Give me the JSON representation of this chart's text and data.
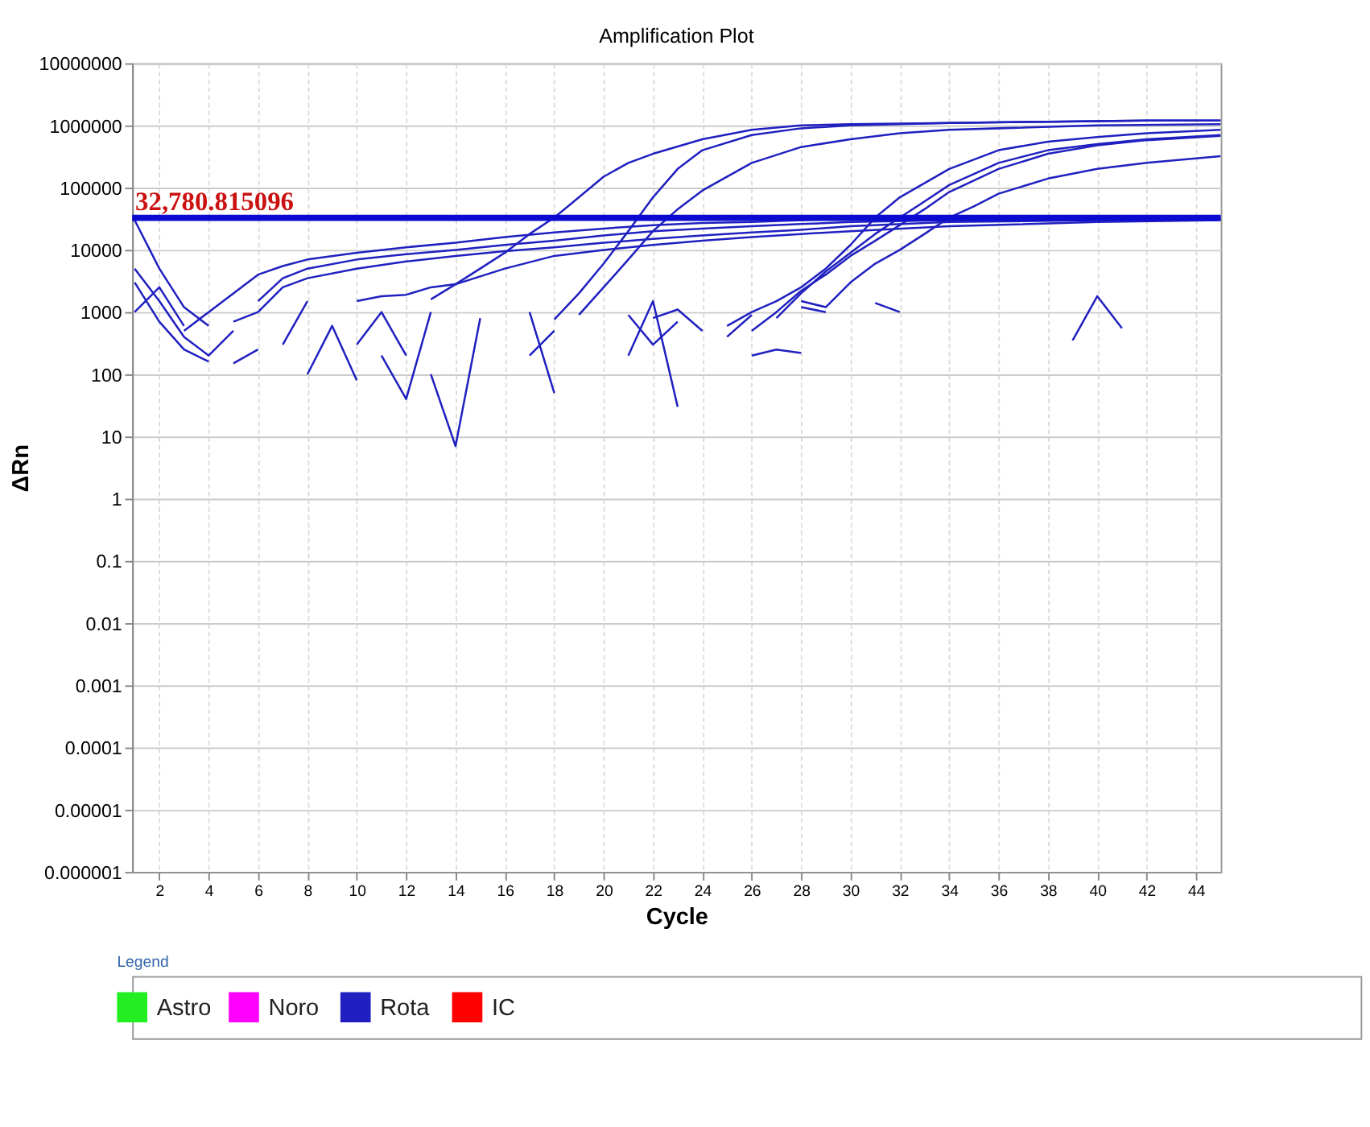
{
  "chart_data": {
    "type": "line",
    "title": "Amplification Plot",
    "xlabel": "Cycle",
    "ylabel": "ΔRn",
    "legend_title": "Legend",
    "legend": "bottom",
    "log": "y",
    "grid": true,
    "line_style": "solid",
    "xlim": [
      0.9,
      45
    ],
    "xticks": [
      2,
      4,
      6,
      8,
      10,
      12,
      14,
      16,
      18,
      20,
      22,
      24,
      26,
      28,
      30,
      32,
      34,
      36,
      38,
      40,
      42,
      44
    ],
    "ylim": [
      1e-06,
      10000000
    ],
    "yticks": [
      {
        "value": 1e-06,
        "label": "0.000001"
      },
      {
        "value": 1e-05,
        "label": "0.00001"
      },
      0.0001,
      0.001,
      0.01,
      0.1,
      1,
      10,
      100,
      1000,
      10000,
      100000,
      1000000,
      10000000
    ],
    "ref_lines": [
      {
        "axis": "y",
        "value": 32780.815096,
        "label": "32,780.815096",
        "color": "#0a0ad0"
      }
    ],
    "series": [
      {
        "name": "Astro",
        "color": "#22ee22"
      },
      {
        "name": "Noro",
        "color": "#ff00ff"
      },
      {
        "name": "Rota",
        "color": "#2020c0",
        "x": [
          13,
          14,
          15,
          16,
          17,
          18,
          19,
          20,
          21,
          22,
          24,
          26,
          28,
          30,
          34,
          38,
          42,
          45
        ],
        "values": [
          1600,
          2800,
          5000,
          9000,
          18000,
          33000,
          70000,
          150000,
          250000,
          350000,
          600000,
          850000,
          1000000,
          1050000,
          1100000,
          1150000,
          1200000,
          1200000
        ]
      },
      {
        "name": "IC",
        "color": "#ff0000"
      },
      {
        "color": "#2020c0",
        "x": [
          18,
          19,
          20,
          21,
          22,
          23,
          24,
          26,
          28,
          30,
          34,
          38,
          42,
          45
        ],
        "values": [
          760,
          2000,
          6000,
          20000,
          70000,
          200000,
          400000,
          700000,
          900000,
          1000000,
          1100000,
          1150000,
          1200000,
          1200000
        ]
      },
      {
        "color": "#2020c0",
        "x": [
          19,
          20,
          21,
          22,
          23,
          24,
          26,
          28,
          30,
          32,
          34,
          36,
          40,
          45
        ],
        "values": [
          900,
          2500,
          7000,
          20000,
          45000,
          90000,
          250000,
          450000,
          600000,
          750000,
          850000,
          900000,
          1000000,
          1050000
        ]
      },
      {
        "color": "#2020c0",
        "x": [
          3,
          4,
          5,
          6,
          7,
          8,
          10,
          12,
          14,
          16,
          18,
          20,
          22,
          24,
          26,
          28,
          30,
          34,
          40,
          45
        ],
        "values": [
          500,
          1000,
          2000,
          4000,
          5500,
          7000,
          9000,
          11000,
          13000,
          16000,
          19000,
          22000,
          25000,
          27000,
          28000,
          30000,
          32000,
          33000,
          33000,
          34000
        ]
      },
      {
        "color": "#2020c0",
        "x": [
          6,
          7,
          8,
          10,
          12,
          14,
          16,
          18,
          20,
          22,
          24,
          26,
          28,
          30,
          34,
          40,
          45
        ],
        "values": [
          1500,
          3500,
          5000,
          7000,
          8500,
          10000,
          12000,
          14000,
          17000,
          20000,
          22000,
          24000,
          26000,
          28000,
          30000,
          31000,
          32000
        ]
      },
      {
        "color": "#2020c0",
        "x": [
          5,
          6,
          7,
          8,
          10,
          12,
          14,
          16,
          18,
          20,
          22,
          24,
          26,
          28,
          30,
          34,
          40,
          45
        ],
        "values": [
          700,
          1000,
          2500,
          3500,
          5000,
          6500,
          8000,
          9500,
          11000,
          13000,
          15000,
          17000,
          19000,
          21000,
          24000,
          28000,
          30000,
          31000
        ]
      },
      {
        "color": "#2020c0",
        "x": [
          10,
          11,
          12,
          13,
          14,
          16,
          18,
          20,
          22,
          24,
          26,
          28,
          30,
          34,
          40,
          45
        ],
        "values": [
          1500,
          1800,
          1900,
          2500,
          2800,
          5000,
          8000,
          10000,
          12000,
          14000,
          16000,
          18000,
          20000,
          24000,
          28000,
          30000
        ]
      },
      {
        "color": "#2020c0",
        "x": [
          25,
          26,
          27,
          28,
          29,
          30,
          31,
          32,
          34,
          36,
          38,
          40,
          42,
          45
        ],
        "values": [
          600,
          1000,
          1500,
          2500,
          5000,
          12000,
          33000,
          70000,
          200000,
          400000,
          550000,
          650000,
          750000,
          850000
        ]
      },
      {
        "color": "#2020c0",
        "x": [
          27,
          28,
          29,
          30,
          31,
          32,
          33,
          34,
          36,
          38,
          40,
          42,
          45
        ],
        "values": [
          800,
          2000,
          4500,
          9000,
          18000,
          33000,
          60000,
          110000,
          250000,
          400000,
          500000,
          600000,
          700000
        ]
      },
      {
        "color": "#2020c0",
        "x": [
          26,
          27,
          28,
          29,
          30,
          31,
          32,
          33,
          34,
          36,
          38,
          40,
          42,
          45
        ],
        "values": [
          500,
          1000,
          2200,
          4000,
          8000,
          14000,
          25000,
          45000,
          85000,
          200000,
          350000,
          480000,
          580000,
          680000
        ]
      },
      {
        "color": "#2020c0",
        "x": [
          28,
          29,
          30,
          31,
          32,
          33,
          34,
          35,
          36,
          38,
          40,
          42,
          45
        ],
        "values": [
          1500,
          1200,
          3000,
          6000,
          10000,
          18000,
          33000,
          50000,
          80000,
          140000,
          200000,
          250000,
          320000
        ]
      },
      {
        "color": "#2020c0",
        "x": [
          1,
          2,
          3,
          4
        ],
        "values": [
          30000,
          5000,
          1200,
          600
        ]
      },
      {
        "color": "#2020c0",
        "x": [
          1,
          2,
          3,
          4,
          5
        ],
        "values": [
          5000,
          1500,
          400,
          200,
          500
        ]
      },
      {
        "color": "#2020c0",
        "x": [
          1,
          2,
          3,
          4
        ],
        "values": [
          3000,
          700,
          250,
          160
        ]
      },
      {
        "color": "#2020c0",
        "x": [
          1,
          2,
          3
        ],
        "values": [
          1000,
          2500,
          600
        ]
      },
      {
        "color": "#2020c0",
        "x": [
          5,
          6
        ],
        "values": [
          150,
          250
        ]
      },
      {
        "color": "#2020c0",
        "x": [
          7,
          8
        ],
        "values": [
          300,
          1500
        ]
      },
      {
        "color": "#2020c0",
        "x": [
          8,
          9,
          10
        ],
        "values": [
          100,
          600,
          80
        ]
      },
      {
        "color": "#2020c0",
        "x": [
          10,
          11,
          12
        ],
        "values": [
          300,
          1000,
          200
        ]
      },
      {
        "color": "#2020c0",
        "x": [
          11,
          12,
          13
        ],
        "values": [
          200,
          40,
          1000
        ]
      },
      {
        "color": "#2020c0",
        "x": [
          13,
          14,
          15
        ],
        "values": [
          100,
          7,
          800
        ]
      },
      {
        "color": "#2020c0",
        "x": [
          17,
          18
        ],
        "values": [
          1000,
          50
        ]
      },
      {
        "color": "#2020c0",
        "x": [
          17,
          18
        ],
        "values": [
          200,
          500
        ]
      },
      {
        "color": "#2020c0",
        "x": [
          21,
          22,
          23
        ],
        "values": [
          900,
          300,
          700
        ]
      },
      {
        "color": "#2020c0",
        "x": [
          21,
          22,
          23
        ],
        "values": [
          200,
          1500,
          30
        ]
      },
      {
        "color": "#2020c0",
        "x": [
          22,
          23,
          24
        ],
        "values": [
          800,
          1100,
          500
        ]
      },
      {
        "color": "#2020c0",
        "x": [
          25,
          26
        ],
        "values": [
          400,
          900
        ]
      },
      {
        "color": "#2020c0",
        "x": [
          26,
          27,
          28
        ],
        "values": [
          200,
          250,
          220
        ]
      },
      {
        "color": "#2020c0",
        "x": [
          28,
          29
        ],
        "values": [
          1200,
          1000
        ]
      },
      {
        "color": "#2020c0",
        "x": [
          31,
          32
        ],
        "values": [
          1400,
          1000
        ]
      },
      {
        "color": "#2020c0",
        "x": [
          39,
          40,
          41
        ],
        "values": [
          350,
          1800,
          550
        ]
      }
    ]
  }
}
